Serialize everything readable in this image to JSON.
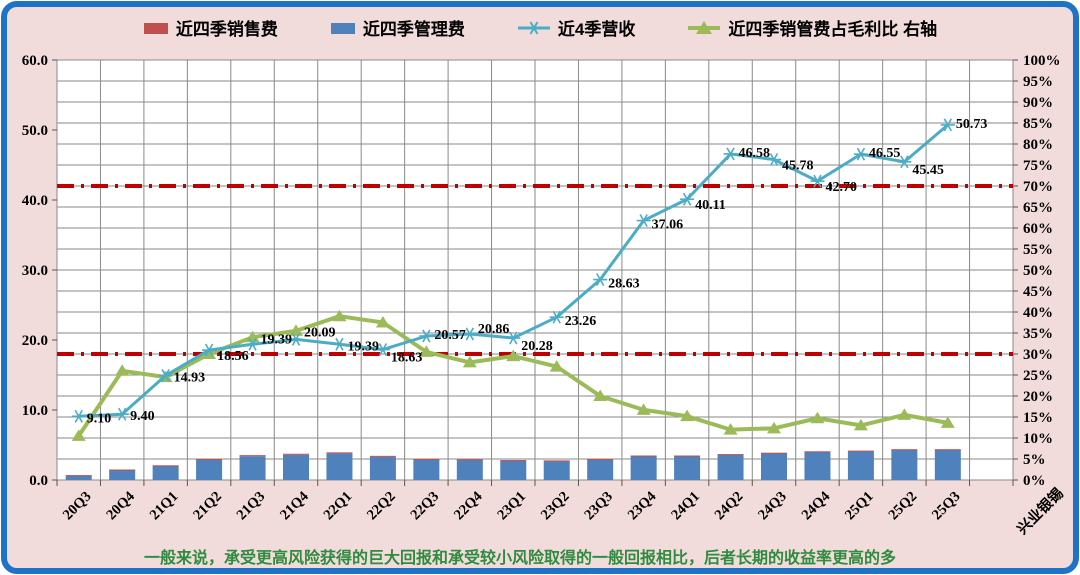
{
  "colors": {
    "background": "#F2DCDB",
    "frame": "#1E73C8",
    "plot_background": "#FFFFFF",
    "grid": "#8A8A8A",
    "reference_line": "#C00000",
    "caption_green": "#2F8B3F",
    "text": "#000000"
  },
  "legend": {
    "items": [
      {
        "label": "近四季销售费",
        "marker": "square"
      },
      {
        "label": "近四季管理费",
        "marker": "square"
      },
      {
        "label": "近4季营收",
        "marker": "asterisk-line"
      },
      {
        "label": "近四季销管费占毛利比 右轴",
        "marker": "triangle-line"
      }
    ]
  },
  "caption": "一般来说，承受更高风险获得的巨大回报和承受较小风险取得的一般回报相比，后者长期的收益率更高的多",
  "chart_data": {
    "type": "combo",
    "categories": [
      "20Q3",
      "20Q4",
      "21Q1",
      "21Q2",
      "21Q3",
      "21Q4",
      "22Q1",
      "22Q2",
      "22Q3",
      "22Q4",
      "23Q1",
      "23Q2",
      "23Q3",
      "23Q4",
      "24Q1",
      "24Q2",
      "24Q3",
      "24Q4",
      "25Q1",
      "25Q2",
      "25Q3"
    ],
    "axis_note": "兴业银锡",
    "left_axis": {
      "min": 0,
      "max": 60,
      "ticks": [
        "0.0",
        "10.0",
        "20.0",
        "30.0",
        "40.0",
        "50.0",
        "60.0"
      ]
    },
    "right_axis": {
      "min": 0,
      "max": 100,
      "ticks": [
        "0%",
        "5%",
        "10%",
        "15%",
        "20%",
        "25%",
        "30%",
        "35%",
        "40%",
        "45%",
        "50%",
        "55%",
        "60%",
        "65%",
        "70%",
        "75%",
        "80%",
        "85%",
        "90%",
        "95%",
        "100%"
      ]
    },
    "series": [
      {
        "name": "近四季销售费",
        "type": "bar",
        "stack": "costs",
        "axis": "left",
        "color": "#C0504D",
        "values": [
          0.1,
          0.1,
          0.1,
          0.1,
          0.15,
          0.15,
          0.15,
          0.15,
          0.1,
          0.1,
          0.1,
          0.1,
          0.1,
          0.1,
          0.1,
          0.1,
          0.1,
          0.1,
          0.1,
          0.1,
          0.1
        ]
      },
      {
        "name": "近四季管理费",
        "type": "bar",
        "stack": "costs",
        "axis": "left",
        "color": "#4F81BD",
        "values": [
          0.6,
          1.4,
          2.0,
          2.9,
          3.4,
          3.6,
          3.8,
          3.3,
          2.9,
          2.85,
          2.75,
          2.7,
          2.9,
          3.4,
          3.4,
          3.6,
          3.8,
          4.0,
          4.1,
          4.3,
          4.3
        ]
      },
      {
        "name": "近4季营收",
        "type": "line",
        "axis": "left",
        "color": "#4BACC6",
        "marker": "asterisk",
        "values": [
          9.1,
          9.4,
          14.93,
          18.56,
          19.39,
          20.09,
          19.39,
          18.63,
          20.57,
          20.86,
          20.28,
          23.26,
          28.63,
          37.06,
          40.11,
          46.58,
          45.78,
          42.7,
          46.55,
          45.45,
          50.73
        ],
        "labels": [
          "9.10",
          "9.40",
          "14.93",
          "18.56",
          "19.39",
          "20.09",
          "19.39",
          "18.63",
          "20.57",
          "20.86",
          "20.28",
          "23.26",
          "28.63",
          "37.06",
          "40.11",
          "46.58",
          "45.78",
          "42.70",
          "46.55",
          "45.45",
          "50.73"
        ],
        "label_dy": [
          6,
          6,
          6,
          10,
          -1,
          -3,
          6,
          12,
          3,
          -1,
          12,
          8,
          8,
          8,
          10,
          3,
          10,
          10,
          3,
          12,
          3
        ]
      },
      {
        "name": "近四季销管费占毛利比 右轴",
        "type": "line",
        "axis": "right",
        "color": "#9BBB59",
        "marker": "triangle",
        "values": [
          10.5,
          26,
          24.5,
          30,
          34,
          35.5,
          39,
          37.5,
          30.5,
          28,
          29.5,
          27,
          20,
          16.7,
          15.2,
          12,
          12.3,
          14.7,
          13,
          15.5,
          13.6
        ]
      }
    ],
    "reference_lines": [
      {
        "axis": "right",
        "value": 70,
        "color": "#C00000",
        "style": "dash-dot"
      },
      {
        "axis": "right",
        "value": 30,
        "color": "#C00000",
        "style": "dash-dot"
      }
    ],
    "grid": "both",
    "legend_position": "top"
  }
}
